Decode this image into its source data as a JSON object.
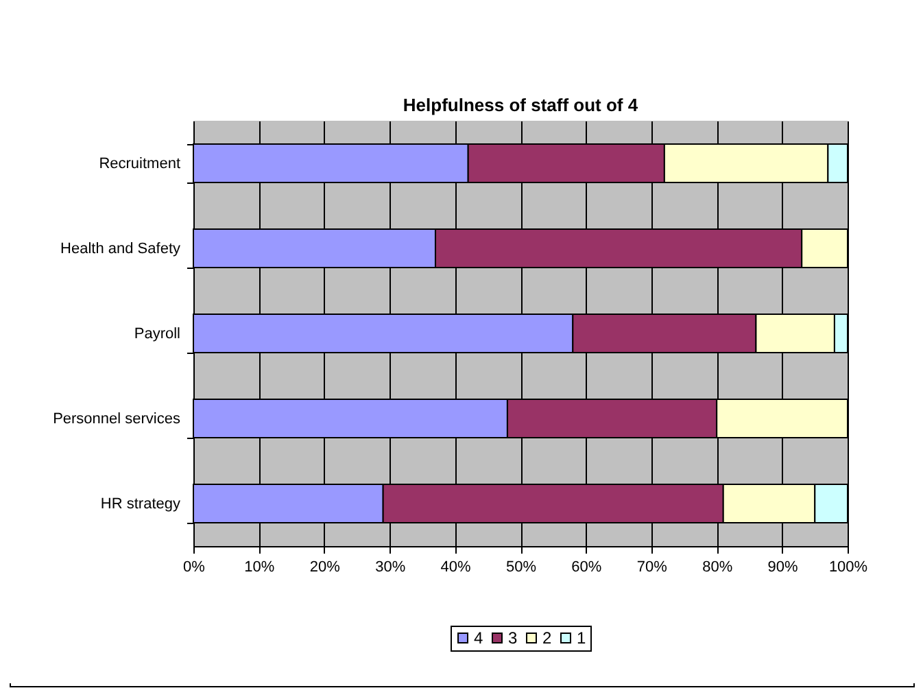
{
  "chart_data": {
    "type": "bar",
    "orientation": "horizontal",
    "stacked": true,
    "title": "Helpfulness of staff out of 4",
    "categories": [
      "Recruitment",
      "Health and Safety",
      "Payroll",
      "Personnel services",
      "HR strategy"
    ],
    "series": [
      {
        "name": "4",
        "color": "#9999ff",
        "values": [
          42,
          37,
          58,
          48,
          29
        ]
      },
      {
        "name": "3",
        "color": "#993366",
        "values": [
          30,
          56,
          28,
          32,
          52
        ]
      },
      {
        "name": "2",
        "color": "#ffffcc",
        "values": [
          25,
          7,
          12,
          20,
          14
        ]
      },
      {
        "name": "1",
        "color": "#ccffff",
        "values": [
          3,
          null,
          2,
          null,
          5
        ]
      }
    ],
    "xlim": [
      0,
      100
    ],
    "xticks": [
      {
        "value": 0,
        "label": "0%"
      },
      {
        "value": 10,
        "label": "10%"
      },
      {
        "value": 20,
        "label": "20%"
      },
      {
        "value": 30,
        "label": "30%"
      },
      {
        "value": 40,
        "label": "40%"
      },
      {
        "value": 50,
        "label": "50%"
      },
      {
        "value": 60,
        "label": "60%"
      },
      {
        "value": 70,
        "label": "70%"
      },
      {
        "value": 80,
        "label": "80%"
      },
      {
        "value": 90,
        "label": "90%"
      },
      {
        "value": 100,
        "label": "100%"
      }
    ],
    "grid": "x",
    "legend": "bottom"
  }
}
